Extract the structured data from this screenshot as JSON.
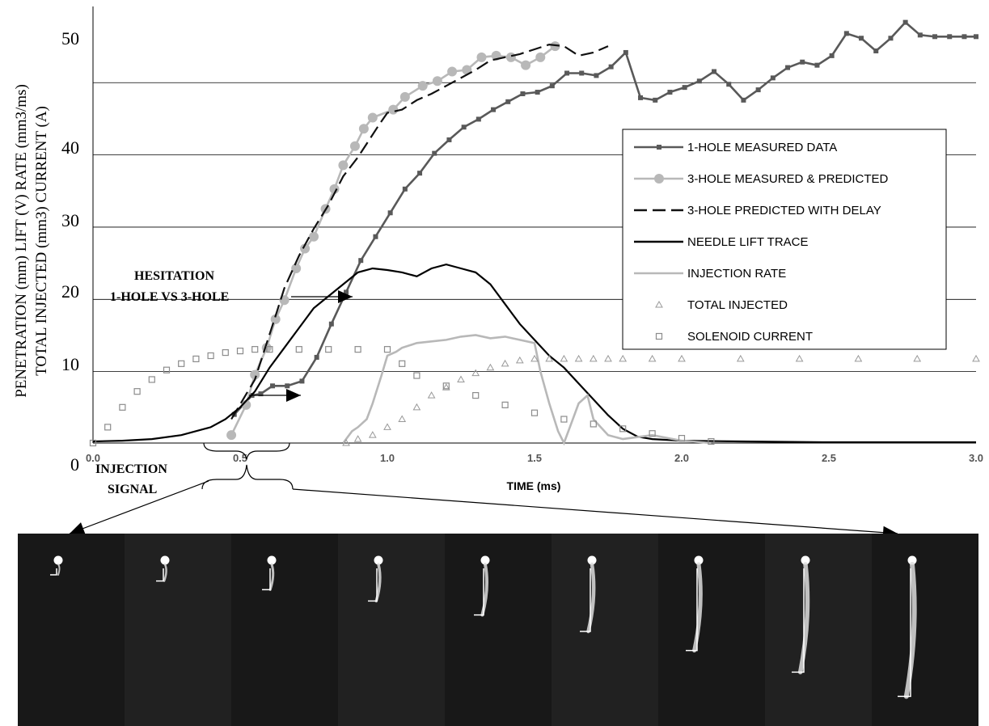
{
  "chart_data": {
    "type": "line",
    "xlabel": "TIME (ms)",
    "ylabel_line1": "PENETRATION (mm) LIFT (V) RATE (mm3/ms)",
    "ylabel_line2": "TOTAL INJECTED (mm3) CURRENT (A)",
    "xlim": [
      0,
      3.0
    ],
    "ylim": [
      0,
      55
    ],
    "x_ticks": [
      "0.0",
      "0.5",
      "1.0",
      "1.5",
      "2.0",
      "2.5",
      "3.0"
    ],
    "y_ticks": [
      "0",
      "10",
      "20",
      "30",
      "40",
      "50"
    ],
    "grid": "horizontal",
    "legend_position": "right",
    "annotations": {
      "hesitation_line1": "HESITATION",
      "hesitation_line2": "1-HOLE VS 3-HOLE",
      "signal_line1": "INJECTION",
      "signal_line2": "SIGNAL"
    },
    "series": [
      {
        "name": "1-HOLE MEASURED DATA",
        "color": "#595959",
        "style": "line-marker-x",
        "x": [
          0.48,
          0.54,
          0.57,
          0.61,
          0.66,
          0.71,
          0.76,
          0.81,
          0.86,
          0.91,
          0.96,
          1.01,
          1.06,
          1.11,
          1.16,
          1.21,
          1.26,
          1.31,
          1.36,
          1.41,
          1.46,
          1.51,
          1.56,
          1.61,
          1.66,
          1.71,
          1.76,
          1.81,
          1.86,
          1.91,
          1.96,
          2.01,
          2.06,
          2.11,
          2.16,
          2.21,
          2.26,
          2.31,
          2.36,
          2.41,
          2.46,
          2.51,
          2.56,
          2.61,
          2.66,
          2.71,
          2.76,
          2.81,
          2.86,
          2.91,
          2.96,
          3.0
        ],
        "y": [
          3.6,
          6.0,
          6.2,
          7.2,
          7.2,
          7.8,
          10.8,
          15.0,
          19.0,
          23.0,
          26.0,
          29.0,
          32.0,
          34.0,
          36.5,
          38.2,
          39.8,
          40.8,
          42.0,
          43.0,
          44.0,
          44.2,
          45.0,
          46.6,
          46.6,
          46.3,
          47.4,
          49.2,
          43.5,
          43.2,
          44.2,
          44.8,
          45.6,
          46.8,
          45.2,
          43.2,
          44.5,
          46.0,
          47.3,
          48.0,
          47.6,
          48.8,
          51.6,
          51.0,
          49.4,
          51.0,
          53.0,
          51.4,
          51.2,
          51.2,
          51.2,
          51.2
        ]
      },
      {
        "name": "3-HOLE MEASURED & PREDICTED",
        "color": "#b8b8b8",
        "style": "line-marker-circle",
        "x": [
          0.47,
          0.52,
          0.55,
          0.59,
          0.62,
          0.65,
          0.69,
          0.72,
          0.75,
          0.79,
          0.82,
          0.85,
          0.89,
          0.92,
          0.95,
          1.02,
          1.06,
          1.12,
          1.17,
          1.22,
          1.27,
          1.32,
          1.37,
          1.42,
          1.47,
          1.52,
          1.57
        ],
        "y": [
          1.0,
          4.8,
          8.6,
          12.0,
          15.6,
          18.0,
          22.0,
          24.5,
          26.0,
          29.5,
          32.0,
          35.0,
          37.4,
          39.6,
          41.0,
          42.0,
          43.6,
          45.0,
          45.6,
          46.8,
          47.0,
          48.6,
          48.8,
          48.6,
          47.6,
          48.6,
          50.0
        ]
      },
      {
        "name": "3-HOLE PREDICTED WITH DELAY",
        "color": "#111111",
        "style": "dashed",
        "x": [
          0.47,
          0.55,
          0.62,
          0.65,
          0.7,
          0.75,
          0.8,
          0.85,
          0.9,
          0.97,
          1.0,
          1.05,
          1.1,
          1.15,
          1.2,
          1.25,
          1.3,
          1.35,
          1.4,
          1.45,
          1.5,
          1.55,
          1.6,
          1.65,
          1.7,
          1.75
        ],
        "y": [
          3.0,
          8.0,
          16.0,
          19.5,
          23.6,
          27.0,
          30.0,
          33.6,
          36.0,
          40.0,
          41.6,
          42.0,
          43.2,
          44.0,
          45.0,
          46.0,
          47.0,
          48.2,
          48.6,
          49.0,
          49.6,
          50.2,
          50.0,
          48.8,
          49.2,
          50.0
        ]
      },
      {
        "name": "NEEDLE LIFT TRACE",
        "color": "#000000",
        "style": "solid",
        "x": [
          0.0,
          0.1,
          0.2,
          0.3,
          0.4,
          0.45,
          0.5,
          0.55,
          0.6,
          0.65,
          0.7,
          0.75,
          0.8,
          0.85,
          0.9,
          0.95,
          1.0,
          1.05,
          1.1,
          1.15,
          1.2,
          1.25,
          1.3,
          1.35,
          1.4,
          1.45,
          1.5,
          1.55,
          1.6,
          1.65,
          1.7,
          1.75,
          1.8,
          1.85,
          1.9,
          2.0,
          2.2,
          2.5,
          3.0
        ],
        "y": [
          0.2,
          0.3,
          0.5,
          1.0,
          2.0,
          3.0,
          4.5,
          6.5,
          9.5,
          12.0,
          14.5,
          17.0,
          18.5,
          20.0,
          21.5,
          22.0,
          21.8,
          21.5,
          21.0,
          22.0,
          22.5,
          22.0,
          21.5,
          20.0,
          17.5,
          15.0,
          13.0,
          11.0,
          9.5,
          7.5,
          5.5,
          3.5,
          1.8,
          0.8,
          0.5,
          0.3,
          0.2,
          0.1,
          0.1
        ]
      },
      {
        "name": "INJECTION RATE",
        "color": "#b8b8b8",
        "style": "solid",
        "x": [
          0.85,
          0.88,
          0.9,
          0.93,
          0.95,
          0.98,
          1.0,
          1.03,
          1.05,
          1.1,
          1.15,
          1.2,
          1.25,
          1.3,
          1.35,
          1.4,
          1.45,
          1.5,
          1.52,
          1.55,
          1.58,
          1.6,
          1.62,
          1.65,
          1.68,
          1.7,
          1.75,
          1.8,
          1.9,
          2.0,
          2.1
        ],
        "y": [
          0.0,
          1.5,
          2.0,
          3.0,
          5.0,
          8.5,
          11.0,
          11.5,
          12.0,
          12.6,
          12.8,
          13.0,
          13.4,
          13.6,
          13.2,
          13.4,
          13.0,
          12.6,
          9.0,
          5.0,
          1.5,
          0.0,
          2.0,
          5.0,
          6.0,
          3.0,
          1.0,
          0.5,
          1.0,
          0.3,
          0.0
        ]
      },
      {
        "name": "TOTAL INJECTED",
        "color": "#999999",
        "style": "marker-triangle",
        "x": [
          0.86,
          0.9,
          0.95,
          1.0,
          1.05,
          1.1,
          1.15,
          1.2,
          1.25,
          1.3,
          1.35,
          1.4,
          1.45,
          1.5,
          1.55,
          1.6,
          1.65,
          1.7,
          1.75,
          1.8,
          1.9,
          2.0,
          2.2,
          2.4,
          2.6,
          2.8,
          3.0
        ],
        "y": [
          0.0,
          0.5,
          1.0,
          2.0,
          3.0,
          4.5,
          6.0,
          7.0,
          8.0,
          8.8,
          9.5,
          10.0,
          10.4,
          10.6,
          10.6,
          10.6,
          10.6,
          10.6,
          10.6,
          10.6,
          10.6,
          10.6,
          10.6,
          10.6,
          10.6,
          10.6,
          10.6
        ]
      },
      {
        "name": "SOLENOID CURRENT",
        "color": "#8c8c8c",
        "style": "marker-square",
        "x": [
          0.0,
          0.05,
          0.1,
          0.15,
          0.2,
          0.25,
          0.3,
          0.35,
          0.4,
          0.45,
          0.5,
          0.55,
          0.6,
          0.7,
          0.8,
          0.9,
          1.0,
          1.05,
          1.1,
          1.2,
          1.3,
          1.4,
          1.5,
          1.6,
          1.7,
          1.8,
          1.9,
          2.0,
          2.1
        ],
        "y": [
          0.0,
          2.0,
          4.5,
          6.5,
          8.0,
          9.2,
          10.0,
          10.6,
          11.0,
          11.4,
          11.6,
          11.8,
          11.8,
          11.8,
          11.8,
          11.8,
          11.8,
          10.0,
          8.5,
          7.2,
          6.0,
          4.8,
          3.8,
          3.0,
          2.4,
          1.8,
          1.2,
          0.6,
          0.2
        ]
      }
    ],
    "sequence_frames": 9
  }
}
